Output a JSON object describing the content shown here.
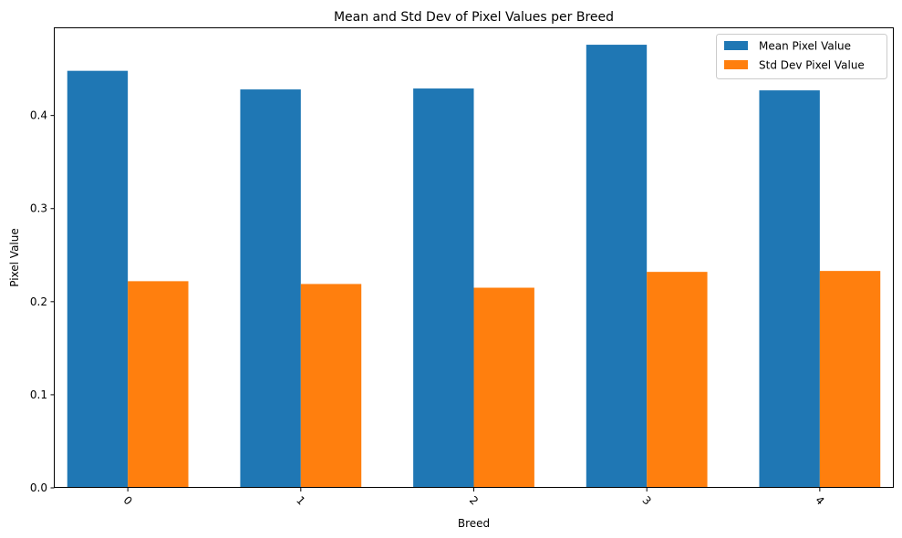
{
  "chart_data": {
    "type": "bar",
    "title": "Mean and Std Dev of Pixel Values per Breed",
    "xlabel": "Breed",
    "ylabel": "Pixel Value",
    "categories": [
      "0",
      "1",
      "2",
      "3",
      "4"
    ],
    "series": [
      {
        "name": "Mean Pixel Value",
        "color": "#1f77b4",
        "values": [
          0.448,
          0.428,
          0.429,
          0.476,
          0.427
        ]
      },
      {
        "name": "Std Dev Pixel Value",
        "color": "#ff7f0e",
        "values": [
          0.222,
          0.219,
          0.215,
          0.232,
          0.233
        ]
      }
    ],
    "ylim": [
      0,
      0.4937
    ],
    "yticks": [
      0.0,
      0.1,
      0.2,
      0.3,
      0.4
    ],
    "ytick_labels": [
      "0.0",
      "0.1",
      "0.2",
      "0.3",
      "0.4"
    ],
    "xtick_rotation_deg": 45,
    "grid": false,
    "legend_position": "top-right"
  }
}
